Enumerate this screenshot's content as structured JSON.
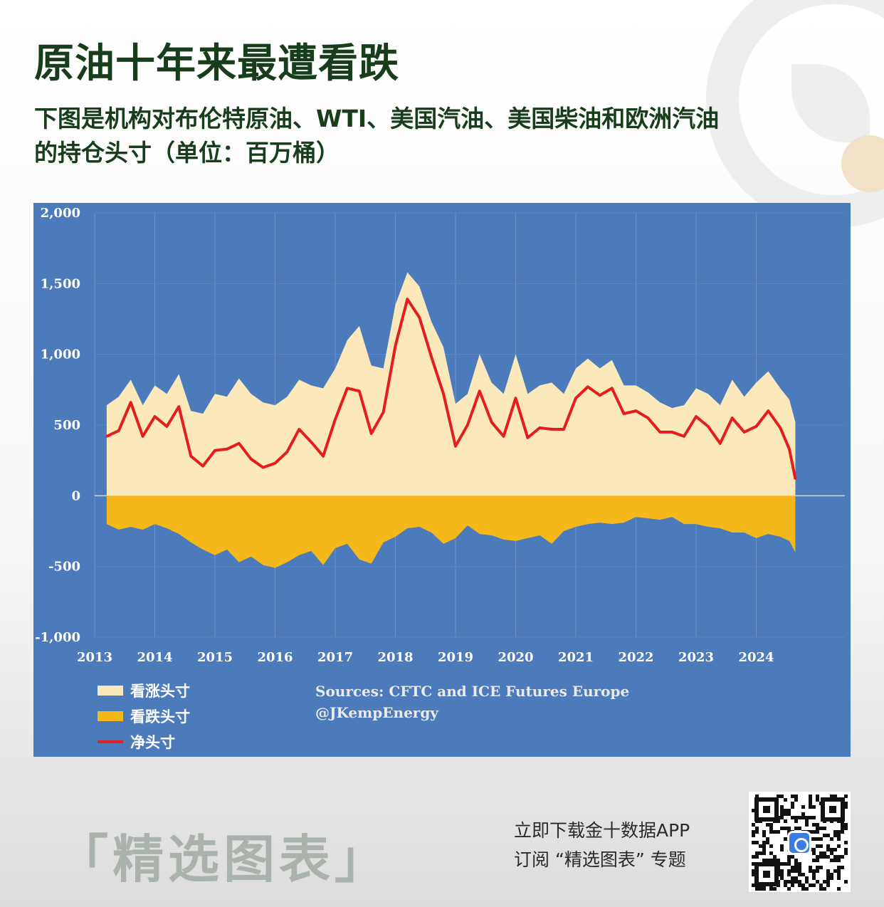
{
  "header": {
    "title": "原油十年来最遭看跌",
    "subtitle": "下图是机构对布伦特原油、WTI、美国汽油、美国柴油和欧洲汽油的持仓头寸（单位：百万桶）"
  },
  "colors": {
    "panel_bg": "#4c7bbb",
    "long": "#fbe9bc",
    "short": "#f4b81a",
    "net": "#e41e1e",
    "title": "#173d1c"
  },
  "chart_data": {
    "type": "area",
    "title": "",
    "xlabel": "",
    "ylabel": "",
    "x_ticks": [
      "2013",
      "2014",
      "2015",
      "2016",
      "2017",
      "2018",
      "2019",
      "2020",
      "2021",
      "2022",
      "2023",
      "2024"
    ],
    "y_ticks": [
      "2,000",
      "1,500",
      "1,000",
      "500",
      "0",
      "-500",
      "-1,000"
    ],
    "ylim": [
      -1000,
      2000
    ],
    "xlim": [
      2013.0,
      2025.0
    ],
    "grid": "vertical lines at each year",
    "legend_position": "bottom-left",
    "x": [
      2013.2,
      2013.4,
      2013.6,
      2013.8,
      2014.0,
      2014.2,
      2014.4,
      2014.6,
      2014.8,
      2015.0,
      2015.2,
      2015.4,
      2015.6,
      2015.8,
      2016.0,
      2016.2,
      2016.4,
      2016.6,
      2016.8,
      2017.0,
      2017.2,
      2017.4,
      2017.6,
      2017.8,
      2018.0,
      2018.2,
      2018.4,
      2018.6,
      2018.8,
      2019.0,
      2019.2,
      2019.4,
      2019.6,
      2019.8,
      2020.0,
      2020.2,
      2020.4,
      2020.6,
      2020.8,
      2021.0,
      2021.2,
      2021.4,
      2021.6,
      2021.8,
      2022.0,
      2022.2,
      2022.4,
      2022.6,
      2022.8,
      2023.0,
      2023.2,
      2023.4,
      2023.6,
      2023.8,
      2024.0,
      2024.2,
      2024.4,
      2024.55,
      2024.65
    ],
    "series": [
      {
        "name": "看涨头寸",
        "values": [
          640,
          700,
          820,
          640,
          780,
          720,
          860,
          600,
          580,
          720,
          700,
          830,
          720,
          660,
          640,
          700,
          820,
          780,
          760,
          900,
          1100,
          1200,
          920,
          900,
          1350,
          1580,
          1480,
          1230,
          1050,
          650,
          720,
          1000,
          800,
          720,
          1000,
          720,
          780,
          800,
          720,
          900,
          970,
          900,
          960,
          780,
          780,
          730,
          660,
          620,
          640,
          760,
          720,
          640,
          820,
          700,
          800,
          880,
          760,
          680,
          520
        ]
      },
      {
        "name": "看跌头寸",
        "values": [
          -200,
          -240,
          -220,
          -240,
          -200,
          -230,
          -270,
          -330,
          -380,
          -420,
          -380,
          -470,
          -430,
          -490,
          -510,
          -470,
          -420,
          -390,
          -490,
          -370,
          -340,
          -450,
          -480,
          -330,
          -290,
          -230,
          -220,
          -260,
          -340,
          -300,
          -210,
          -270,
          -280,
          -310,
          -320,
          -300,
          -280,
          -340,
          -250,
          -220,
          -200,
          -190,
          -200,
          -190,
          -150,
          -160,
          -170,
          -150,
          -200,
          -200,
          -220,
          -230,
          -260,
          -260,
          -300,
          -270,
          -290,
          -320,
          -400
        ]
      },
      {
        "name": "净头寸",
        "values": [
          420,
          460,
          660,
          420,
          560,
          490,
          630,
          280,
          210,
          320,
          330,
          370,
          260,
          200,
          230,
          310,
          470,
          380,
          280,
          540,
          760,
          740,
          440,
          590,
          1060,
          1390,
          1260,
          980,
          720,
          350,
          500,
          740,
          520,
          420,
          690,
          410,
          480,
          470,
          470,
          690,
          770,
          710,
          760,
          580,
          600,
          550,
          450,
          450,
          420,
          560,
          490,
          370,
          550,
          450,
          490,
          600,
          480,
          330,
          120
        ]
      }
    ]
  },
  "legend": {
    "long_label": "看涨头寸",
    "short_label": "看跌头寸",
    "net_label": "净头寸"
  },
  "source": {
    "line1": "Sources: CFTC and ICE Futures Europe",
    "line2": "@JKempEnergy"
  },
  "footer": {
    "brand": "「精选图表」",
    "promo_line1": "立即下载金十数据APP",
    "promo_line2": "订阅 “精选图表” 专题"
  }
}
